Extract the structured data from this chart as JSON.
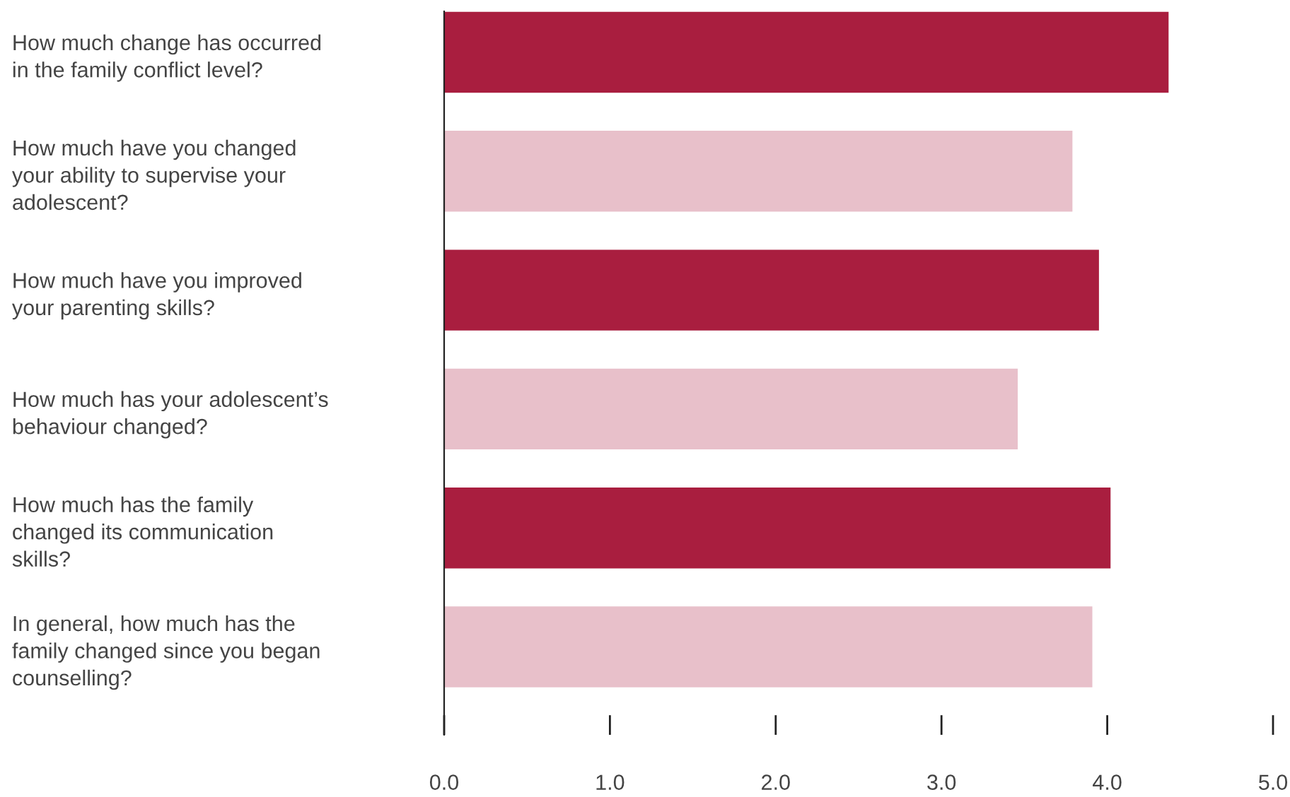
{
  "chart_data": {
    "type": "bar",
    "orientation": "horizontal",
    "categories": [
      "How much change has occurred\nin the family conflict level?",
      "How much have you changed\nyour ability to supervise your\nadolescent?",
      "How much have you improved\nyour parenting skills?",
      "How much has your adolescent’s\nbehaviour changed?",
      "How much has the family\nchanged its communication\nskills?",
      "In general, how much has the\nfamily changed since you began\ncounselling?"
    ],
    "values": [
      4.37,
      3.79,
      3.95,
      3.46,
      4.02,
      3.91
    ],
    "colors": [
      "#a91e3f",
      "#e8c0ca",
      "#a91e3f",
      "#e8c0ca",
      "#a91e3f",
      "#e8c0ca"
    ],
    "xlim": [
      0,
      5
    ],
    "xticks": [
      {
        "value": 0,
        "label": "0.0"
      },
      {
        "value": 1,
        "label": "1.0"
      },
      {
        "value": 2,
        "label": "2.0"
      },
      {
        "value": 3,
        "label": "3.0"
      },
      {
        "value": 4,
        "label": "4.0"
      },
      {
        "value": 5,
        "label": "5.0"
      }
    ],
    "grid": false,
    "legend": false
  }
}
